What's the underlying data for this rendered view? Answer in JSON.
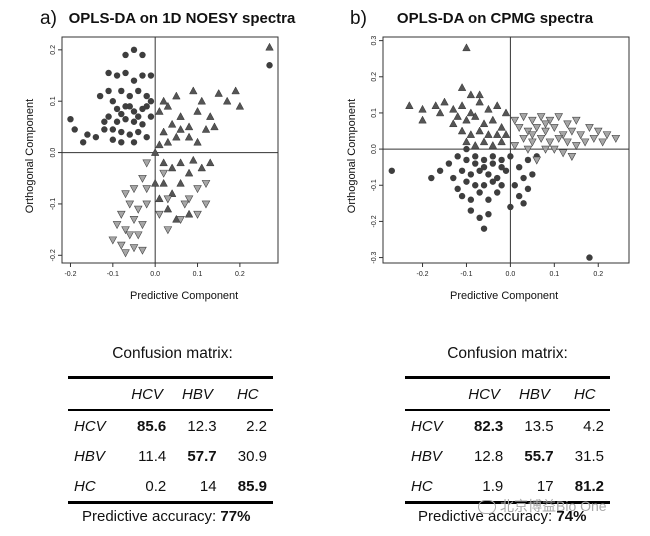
{
  "panels": [
    {
      "letter": "a)",
      "title": "OPLS-DA on 1D NOESY spectra",
      "confusion_title": "Confusion matrix:",
      "accuracy_label": "Predictive accuracy:",
      "accuracy_value": "77%"
    },
    {
      "letter": "b)",
      "title": "OPLS-DA on CPMG spectra",
      "confusion_title": "Confusion matrix:",
      "accuracy_label": "Predictive accuracy:",
      "accuracy_value": "74%"
    }
  ],
  "watermark": "北京博益Bio One",
  "colors": {
    "circle": "#3e3e3e",
    "triangle_up": "#555555",
    "triangle_down": "#a6a6a6"
  },
  "chart_data": [
    {
      "type": "scatter",
      "title": "OPLS-DA on 1D NOESY spectra",
      "xlabel": "Predictive Component",
      "ylabel": "Orthogonal Component",
      "xlim": [
        -0.22,
        0.29
      ],
      "ylim": [
        -0.215,
        0.225
      ],
      "xticks": [
        "-0.2",
        "-0.1",
        "0.0",
        "0.1",
        "0.2"
      ],
      "yticks": [
        "-0.2",
        "-0.1",
        "0.0",
        "0.1",
        "0.2"
      ],
      "series": [
        {
          "marker": "circle",
          "points": [
            [
              -0.07,
              0.19
            ],
            [
              -0.05,
              0.2
            ],
            [
              -0.03,
              0.19
            ],
            [
              -0.11,
              0.155
            ],
            [
              -0.09,
              0.15
            ],
            [
              -0.07,
              0.155
            ],
            [
              -0.05,
              0.14
            ],
            [
              -0.03,
              0.15
            ],
            [
              -0.01,
              0.15
            ],
            [
              -0.13,
              0.11
            ],
            [
              -0.11,
              0.12
            ],
            [
              -0.1,
              0.1
            ],
            [
              -0.08,
              0.12
            ],
            [
              -0.06,
              0.11
            ],
            [
              -0.04,
              0.12
            ],
            [
              -0.02,
              0.11
            ],
            [
              -0.01,
              0.1
            ],
            [
              -0.09,
              0.085
            ],
            [
              -0.07,
              0.09
            ],
            [
              -0.05,
              0.08
            ],
            [
              -0.03,
              0.085
            ],
            [
              -0.11,
              0.07
            ],
            [
              -0.09,
              0.06
            ],
            [
              -0.07,
              0.065
            ],
            [
              -0.05,
              0.06
            ],
            [
              -0.03,
              0.055
            ],
            [
              -0.01,
              0.07
            ],
            [
              -0.12,
              0.045
            ],
            [
              -0.1,
              0.045
            ],
            [
              -0.08,
              0.04
            ],
            [
              -0.06,
              0.035
            ],
            [
              -0.04,
              0.04
            ],
            [
              -0.02,
              0.03
            ],
            [
              -0.14,
              0.03
            ],
            [
              -0.16,
              0.035
            ],
            [
              -0.17,
              0.02
            ],
            [
              -0.2,
              0.065
            ],
            [
              -0.19,
              0.045
            ],
            [
              -0.08,
              0.02
            ],
            [
              -0.05,
              0.02
            ],
            [
              -0.1,
              0.025
            ],
            [
              -0.12,
              0.06
            ],
            [
              -0.06,
              0.09
            ],
            [
              -0.04,
              0.07
            ],
            [
              -0.08,
              0.075
            ],
            [
              -0.02,
              0.09
            ],
            [
              0.27,
              0.17
            ]
          ]
        },
        {
          "marker": "triangle_up",
          "points": [
            [
              0.27,
              0.205
            ],
            [
              0.19,
              0.12
            ],
            [
              0.15,
              0.115
            ],
            [
              0.2,
              0.09
            ],
            [
              0.17,
              0.1
            ],
            [
              0.13,
              0.07
            ],
            [
              0.11,
              0.1
            ],
            [
              0.09,
              0.12
            ],
            [
              0.05,
              0.11
            ],
            [
              0.01,
              0.08
            ],
            [
              0.02,
              0.1
            ],
            [
              0.04,
              0.055
            ],
            [
              0.06,
              0.07
            ],
            [
              0.08,
              0.05
            ],
            [
              0.12,
              0.045
            ],
            [
              0.1,
              0.02
            ],
            [
              0.08,
              0.03
            ],
            [
              0.05,
              0.03
            ],
            [
              0.03,
              0.02
            ],
            [
              0.02,
              0.04
            ],
            [
              0.06,
              0.045
            ],
            [
              0.14,
              0.05
            ],
            [
              0.0,
              0.0
            ],
            [
              0.02,
              -0.02
            ],
            [
              0.04,
              -0.03
            ],
            [
              0.06,
              -0.02
            ],
            [
              0.08,
              -0.04
            ],
            [
              0.09,
              -0.015
            ],
            [
              0.11,
              -0.03
            ],
            [
              0.13,
              -0.02
            ],
            [
              0.02,
              -0.06
            ],
            [
              0.04,
              -0.08
            ],
            [
              0.01,
              -0.09
            ],
            [
              0.03,
              -0.11
            ],
            [
              0.05,
              -0.13
            ],
            [
              0.08,
              -0.12
            ],
            [
              0.0,
              -0.06
            ],
            [
              0.06,
              -0.06
            ],
            [
              0.01,
              0.015
            ],
            [
              0.03,
              0.09
            ],
            [
              0.1,
              0.08
            ]
          ]
        },
        {
          "marker": "triangle_down",
          "points": [
            [
              -0.02,
              -0.02
            ],
            [
              -0.03,
              -0.05
            ],
            [
              -0.05,
              -0.07
            ],
            [
              -0.07,
              -0.08
            ],
            [
              -0.06,
              -0.1
            ],
            [
              -0.04,
              -0.11
            ],
            [
              -0.02,
              -0.1
            ],
            [
              -0.08,
              -0.12
            ],
            [
              -0.05,
              -0.13
            ],
            [
              -0.03,
              -0.14
            ],
            [
              -0.07,
              -0.15
            ],
            [
              -0.09,
              -0.14
            ],
            [
              -0.06,
              -0.16
            ],
            [
              -0.04,
              -0.16
            ],
            [
              -0.08,
              -0.18
            ],
            [
              -0.1,
              -0.17
            ],
            [
              -0.05,
              -0.185
            ],
            [
              -0.07,
              -0.195
            ],
            [
              -0.03,
              -0.19
            ],
            [
              0.01,
              -0.12
            ],
            [
              0.03,
              -0.15
            ],
            [
              0.06,
              -0.13
            ],
            [
              0.08,
              -0.09
            ],
            [
              0.1,
              -0.12
            ],
            [
              0.12,
              -0.1
            ],
            [
              0.1,
              -0.07
            ],
            [
              0.07,
              -0.1
            ],
            [
              0.03,
              -0.09
            ],
            [
              0.12,
              -0.06
            ],
            [
              -0.02,
              -0.07
            ],
            [
              0.02,
              -0.04
            ]
          ]
        }
      ]
    },
    {
      "type": "scatter",
      "title": "OPLS-DA on CPMG spectra",
      "xlabel": "Predictive Component",
      "ylabel": "Orthogonal Component",
      "xlim": [
        -0.29,
        0.27
      ],
      "ylim": [
        -0.315,
        0.31
      ],
      "xticks": [
        "-0.2",
        "-0.1",
        "0.0",
        "0.1",
        "0.2"
      ],
      "yticks": [
        "-0.3",
        "-0.2",
        "-0.1",
        "0.0",
        "0.1",
        "0.2",
        "0.3"
      ],
      "series": [
        {
          "marker": "circle",
          "points": [
            [
              -0.12,
              -0.02
            ],
            [
              -0.1,
              -0.03
            ],
            [
              -0.08,
              -0.02
            ],
            [
              -0.06,
              -0.03
            ],
            [
              -0.04,
              -0.04
            ],
            [
              -0.02,
              -0.05
            ],
            [
              -0.11,
              -0.06
            ],
            [
              -0.09,
              -0.07
            ],
            [
              -0.07,
              -0.06
            ],
            [
              -0.05,
              -0.07
            ],
            [
              -0.03,
              -0.08
            ],
            [
              -0.01,
              -0.06
            ],
            [
              -0.1,
              -0.09
            ],
            [
              -0.08,
              -0.1
            ],
            [
              -0.06,
              -0.1
            ],
            [
              -0.04,
              -0.09
            ],
            [
              -0.02,
              -0.1
            ],
            [
              -0.12,
              -0.11
            ],
            [
              -0.11,
              -0.13
            ],
            [
              -0.09,
              -0.14
            ],
            [
              -0.07,
              -0.12
            ],
            [
              -0.05,
              -0.14
            ],
            [
              -0.03,
              -0.12
            ],
            [
              -0.09,
              -0.17
            ],
            [
              -0.07,
              -0.19
            ],
            [
              -0.05,
              -0.18
            ],
            [
              -0.06,
              -0.22
            ],
            [
              -0.14,
              -0.04
            ],
            [
              -0.16,
              -0.06
            ],
            [
              -0.18,
              -0.08
            ],
            [
              -0.27,
              -0.06
            ],
            [
              0.0,
              -0.02
            ],
            [
              0.02,
              -0.05
            ],
            [
              0.03,
              -0.08
            ],
            [
              0.01,
              -0.1
            ],
            [
              0.02,
              -0.13
            ],
            [
              0.0,
              -0.16
            ],
            [
              0.04,
              -0.11
            ],
            [
              0.05,
              -0.07
            ],
            [
              0.03,
              -0.15
            ],
            [
              0.18,
              -0.3
            ],
            [
              -0.13,
              -0.08
            ],
            [
              -0.08,
              -0.04
            ],
            [
              -0.04,
              -0.02
            ],
            [
              -0.1,
              0.0
            ],
            [
              -0.02,
              -0.03
            ],
            [
              0.04,
              -0.03
            ],
            [
              0.06,
              -0.02
            ],
            [
              -0.06,
              -0.05
            ]
          ]
        },
        {
          "marker": "triangle_up",
          "points": [
            [
              -0.1,
              0.28
            ],
            [
              -0.11,
              0.17
            ],
            [
              -0.09,
              0.15
            ],
            [
              -0.23,
              0.12
            ],
            [
              -0.2,
              0.11
            ],
            [
              -0.17,
              0.12
            ],
            [
              -0.15,
              0.13
            ],
            [
              -0.13,
              0.11
            ],
            [
              -0.11,
              0.12
            ],
            [
              -0.09,
              0.1
            ],
            [
              -0.07,
              0.13
            ],
            [
              -0.05,
              0.11
            ],
            [
              -0.03,
              0.12
            ],
            [
              -0.01,
              0.1
            ],
            [
              -0.12,
              0.09
            ],
            [
              -0.1,
              0.08
            ],
            [
              -0.08,
              0.09
            ],
            [
              -0.06,
              0.07
            ],
            [
              -0.04,
              0.08
            ],
            [
              -0.02,
              0.06
            ],
            [
              -0.11,
              0.05
            ],
            [
              -0.09,
              0.04
            ],
            [
              -0.07,
              0.05
            ],
            [
              -0.05,
              0.04
            ],
            [
              -0.03,
              0.04
            ],
            [
              -0.1,
              0.02
            ],
            [
              -0.08,
              0.01
            ],
            [
              -0.06,
              0.02
            ],
            [
              -0.04,
              0.01
            ],
            [
              -0.02,
              0.02
            ],
            [
              -0.2,
              0.08
            ],
            [
              -0.16,
              0.1
            ],
            [
              -0.13,
              0.07
            ],
            [
              -0.07,
              0.15
            ],
            [
              -0.01,
              0.04
            ]
          ]
        },
        {
          "marker": "triangle_down",
          "points": [
            [
              0.01,
              0.08
            ],
            [
              0.03,
              0.09
            ],
            [
              0.05,
              0.08
            ],
            [
              0.07,
              0.09
            ],
            [
              0.09,
              0.08
            ],
            [
              0.11,
              0.09
            ],
            [
              0.13,
              0.07
            ],
            [
              0.15,
              0.08
            ],
            [
              0.02,
              0.06
            ],
            [
              0.04,
              0.05
            ],
            [
              0.06,
              0.06
            ],
            [
              0.08,
              0.05
            ],
            [
              0.1,
              0.06
            ],
            [
              0.12,
              0.04
            ],
            [
              0.14,
              0.05
            ],
            [
              0.16,
              0.04
            ],
            [
              0.18,
              0.06
            ],
            [
              0.2,
              0.05
            ],
            [
              0.22,
              0.04
            ],
            [
              0.24,
              0.03
            ],
            [
              0.03,
              0.03
            ],
            [
              0.05,
              0.02
            ],
            [
              0.07,
              0.03
            ],
            [
              0.09,
              0.02
            ],
            [
              0.11,
              0.03
            ],
            [
              0.13,
              0.02
            ],
            [
              0.15,
              0.01
            ],
            [
              0.17,
              0.02
            ],
            [
              0.19,
              0.03
            ],
            [
              0.21,
              0.02
            ],
            [
              0.01,
              0.01
            ],
            [
              0.04,
              0.0
            ],
            [
              0.08,
              0.0
            ],
            [
              0.12,
              -0.01
            ],
            [
              0.06,
              -0.03
            ],
            [
              0.14,
              -0.02
            ],
            [
              0.1,
              0.0
            ],
            [
              0.05,
              0.04
            ],
            [
              0.08,
              0.07
            ]
          ]
        }
      ]
    }
  ],
  "confusion_matrices": [
    {
      "columns": [
        "HCV",
        "HBV",
        "HC"
      ],
      "rows": [
        {
          "label": "HCV",
          "values": [
            "85.6",
            "12.3",
            "2.2"
          ]
        },
        {
          "label": "HBV",
          "values": [
            "11.4",
            "57.7",
            "30.9"
          ]
        },
        {
          "label": "HC",
          "values": [
            "0.2",
            "14",
            "85.9"
          ]
        }
      ]
    },
    {
      "columns": [
        "HCV",
        "HBV",
        "HC"
      ],
      "rows": [
        {
          "label": "HCV",
          "values": [
            "82.3",
            "13.5",
            "4.2"
          ]
        },
        {
          "label": "HBV",
          "values": [
            "12.8",
            "55.7",
            "31.5"
          ]
        },
        {
          "label": "HC",
          "values": [
            "1.9",
            "17",
            "81.2"
          ]
        }
      ]
    }
  ]
}
